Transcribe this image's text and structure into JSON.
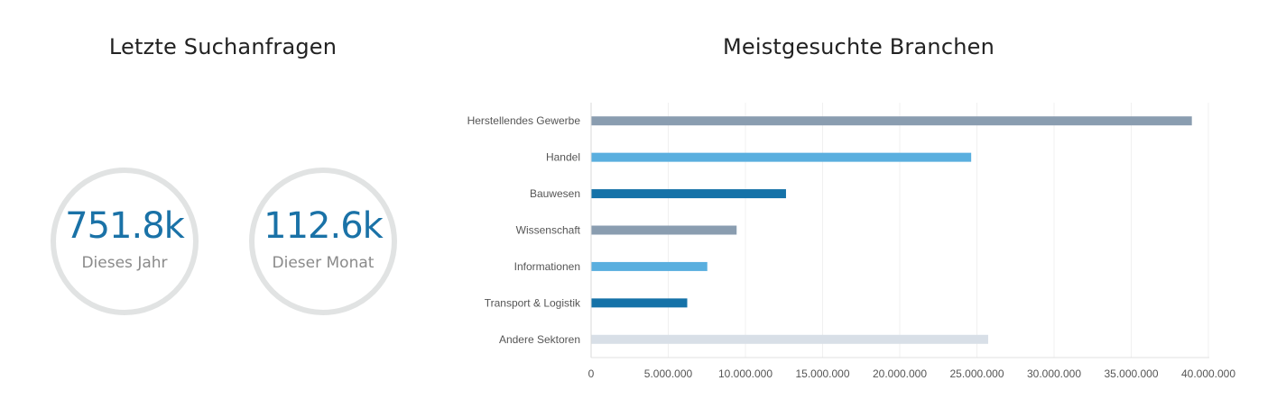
{
  "left_panel": {
    "title": "Letzte Suchanfragen",
    "kpis": [
      {
        "value": "751.8k",
        "label": "Dieses Jahr"
      },
      {
        "value": "112.6k",
        "label": "Dieser Monat"
      }
    ]
  },
  "right_panel": {
    "title": "Meistgesuchte Branchen"
  },
  "colors": {
    "title": "#222222",
    "kpi_value": "#1a72a7",
    "kpi_label": "#8a8a8a",
    "kpi_ring": "#e1e3e3"
  },
  "chart_data": {
    "type": "bar",
    "orientation": "horizontal",
    "title": "Meistgesuchte Branchen",
    "xlabel": "",
    "ylabel": "",
    "categories": [
      "Herstellendes Gewerbe",
      "Handel",
      "Bauwesen",
      "Wissenschaft",
      "Informationen",
      "Transport & Logistik",
      "Andere Sektoren"
    ],
    "values": [
      38900000,
      24600000,
      12600000,
      9400000,
      7500000,
      6200000,
      25700000
    ],
    "bar_colors": [
      "#8a9db0",
      "#5aafdf",
      "#1572a8",
      "#8a9db0",
      "#5aafdf",
      "#1572a8",
      "#d8dfe7"
    ],
    "xlim": [
      0,
      40000000
    ],
    "x_ticks": [
      0,
      5000000,
      10000000,
      15000000,
      20000000,
      25000000,
      30000000,
      35000000,
      40000000
    ],
    "x_tick_labels": [
      "0",
      "5.000.000",
      "10.000.000",
      "15.000.000",
      "20.000.000",
      "25.000.000",
      "30.000.000",
      "35.000.000",
      "40.000.000"
    ],
    "grid": true,
    "legend": false
  }
}
